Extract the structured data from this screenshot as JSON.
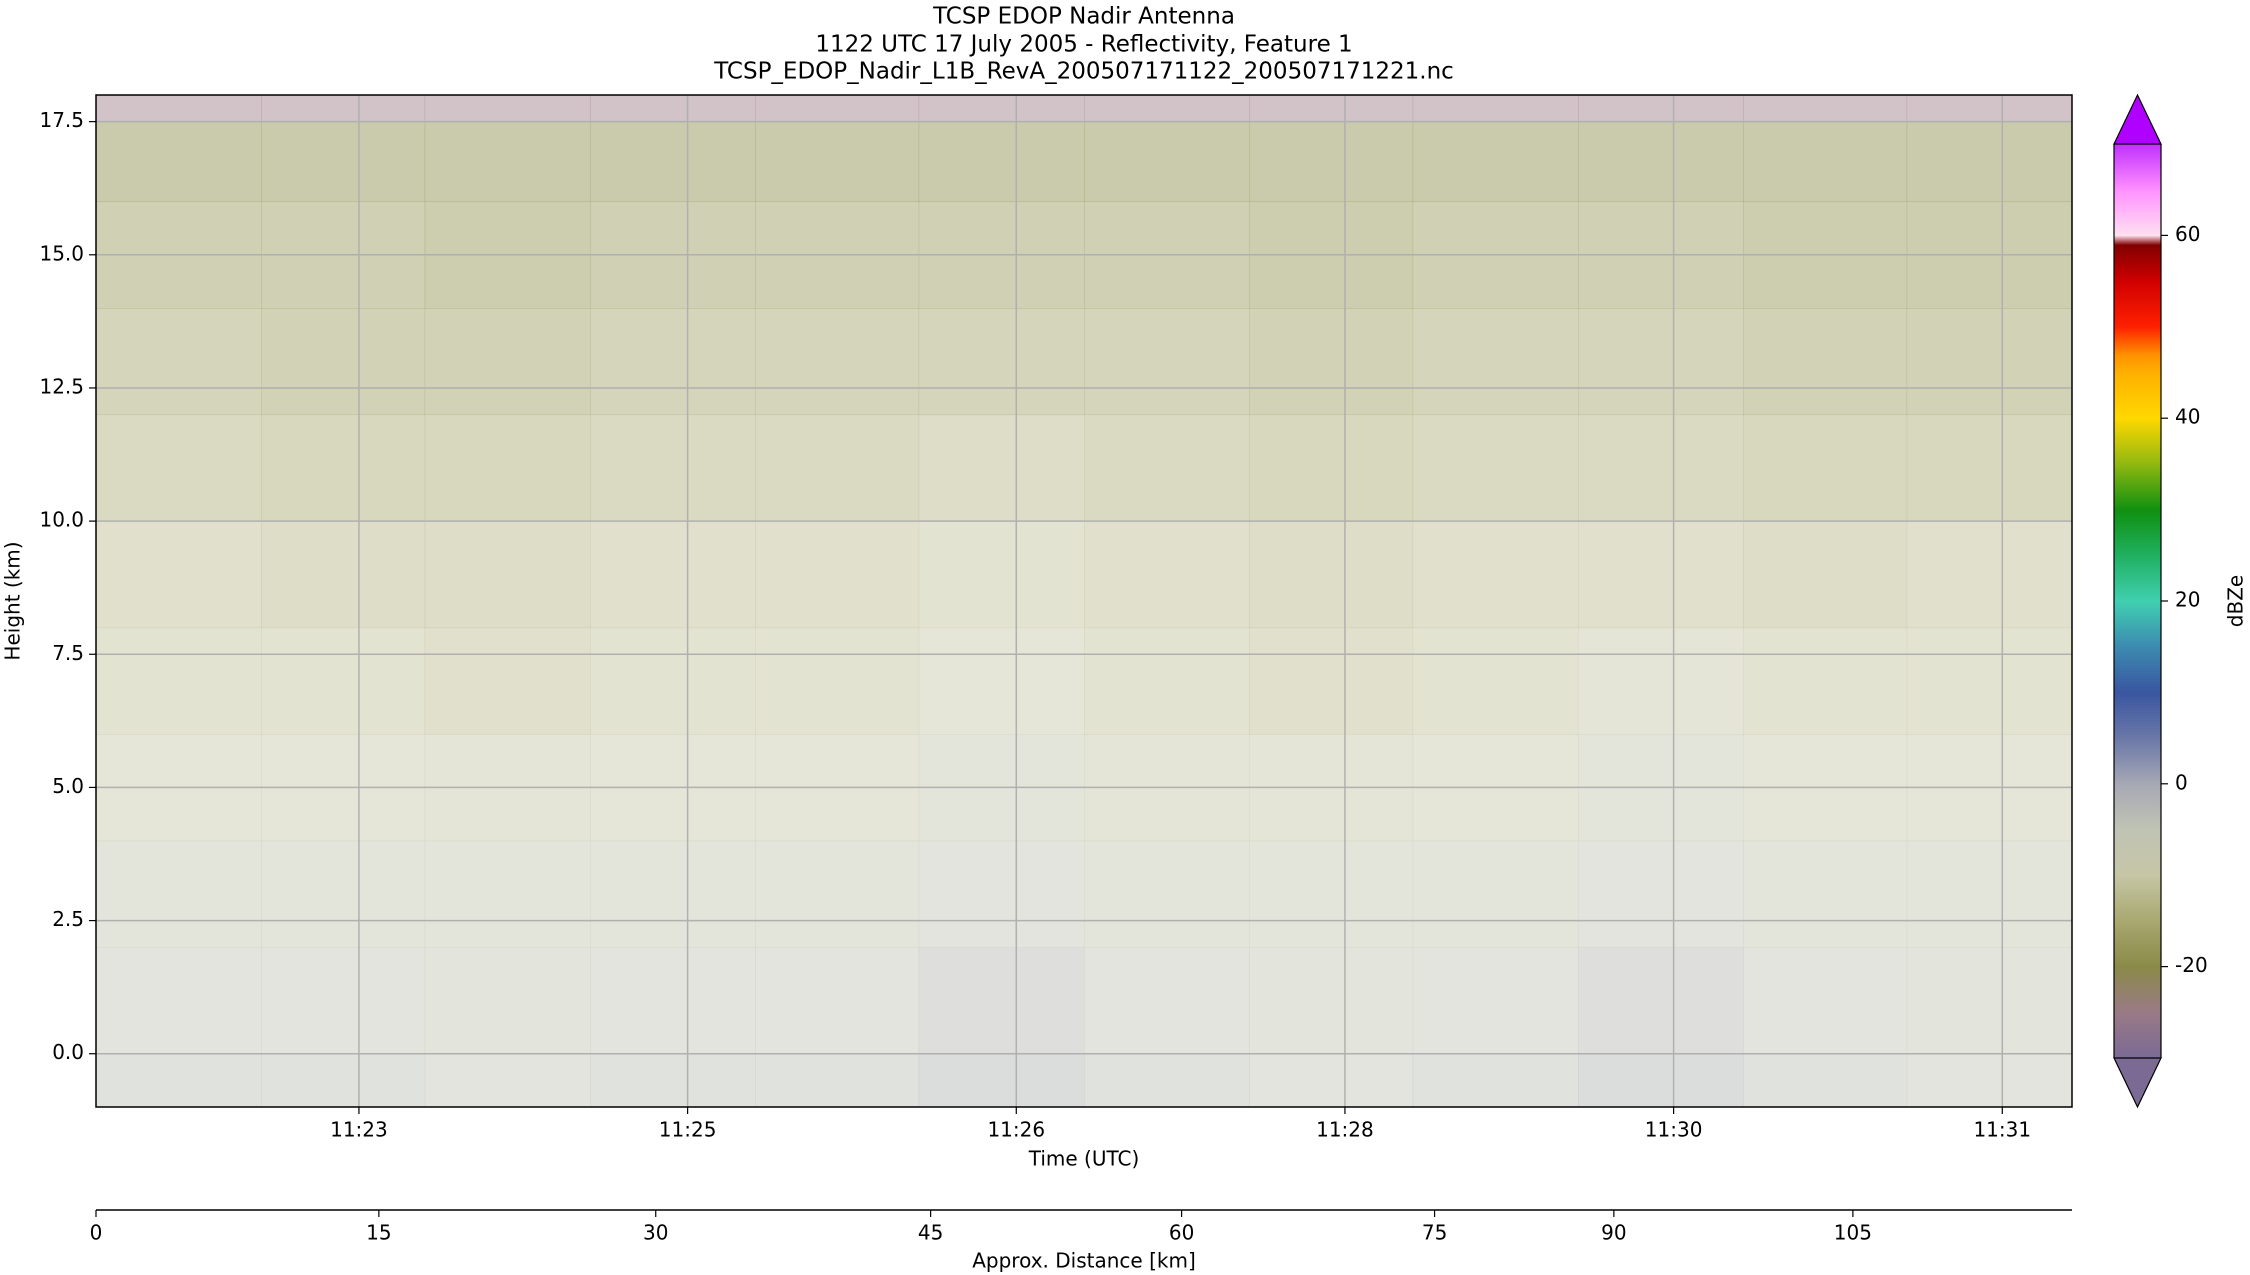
{
  "chart_data": {
    "type": "heatmap",
    "title": "TCSP EDOP Nadir Antenna",
    "subtitle": "1122 UTC 17 July 2005 - Reflectivity, Feature 1",
    "filename": "TCSP_EDOP_Nadir_L1B_RevA_200507171122_200507171221.nc",
    "xlabel": "Time (UTC)",
    "ylabel": "Height (km)",
    "colorbar_label": "dBZe",
    "xlim": [
      682.08,
      692.0
    ],
    "xticks": [
      {
        "value": 683.4,
        "label": "11:23"
      },
      {
        "value": 685.05,
        "label": "11:25"
      },
      {
        "value": 686.7,
        "label": "11:26"
      },
      {
        "value": 688.35,
        "label": "11:28"
      },
      {
        "value": 690.0,
        "label": "11:30"
      },
      {
        "value": 691.65,
        "label": "11:31"
      }
    ],
    "ylim": [
      -1,
      18
    ],
    "yticks": [
      {
        "value": 0,
        "label": "0.0"
      },
      {
        "value": 2.5,
        "label": "2.5"
      },
      {
        "value": 5,
        "label": "5.0"
      },
      {
        "value": 7.5,
        "label": "7.5"
      },
      {
        "value": 10,
        "label": "10.0"
      },
      {
        "value": 12.5,
        "label": "12.5"
      },
      {
        "value": 15,
        "label": "15.0"
      },
      {
        "value": 17.5,
        "label": "17.5"
      }
    ],
    "grid": true,
    "x_edges": [
      682.08,
      682.91,
      683.73,
      684.56,
      685.39,
      686.21,
      687.04,
      687.87,
      688.69,
      689.52,
      690.35,
      691.17,
      692.0
    ],
    "y_edges": [
      -1,
      0,
      2,
      4,
      6,
      8,
      10,
      12,
      14,
      16,
      17.5,
      18
    ],
    "z": [
      [
        -4,
        -4,
        -5,
        -4,
        -4,
        -2,
        -4,
        -5,
        -4,
        -2,
        -4,
        -5
      ],
      [
        -5,
        -5,
        -6,
        -5,
        -5,
        -3,
        -5,
        -6,
        -5,
        -3,
        -5,
        -6
      ],
      [
        -7,
        -7,
        -8,
        -7,
        -7,
        -5,
        -7,
        -8,
        -7,
        -5,
        -7,
        -7
      ],
      [
        -9,
        -9,
        -10,
        -9,
        -9,
        -7,
        -10,
        -10,
        -9,
        -8,
        -9,
        -9
      ],
      [
        -11,
        -11,
        -12,
        -11,
        -11,
        -9,
        -11,
        -12,
        -11,
        -10,
        -11,
        -11
      ],
      [
        -12,
        -13,
        -13,
        -12,
        -12,
        -11,
        -12,
        -13,
        -12,
        -12,
        -13,
        -12
      ],
      [
        -14,
        -15,
        -15,
        -14,
        -14,
        -13,
        -14,
        -15,
        -14,
        -14,
        -15,
        -15
      ],
      [
        -16,
        -17,
        -17,
        -16,
        -16,
        -16,
        -16,
        -17,
        -16,
        -16,
        -17,
        -17
      ],
      [
        -18,
        -18,
        -19,
        -18,
        -18,
        -18,
        -18,
        -19,
        -18,
        -18,
        -19,
        -19
      ],
      [
        -20,
        -20,
        -20,
        -20,
        -20,
        -20,
        -20,
        -20,
        -20,
        -20,
        -20,
        -20
      ],
      [
        -25,
        -25,
        -25,
        -25,
        -25,
        -25,
        -25,
        -25,
        -25,
        -25,
        -25,
        -25
      ]
    ],
    "clim": [
      -30,
      70
    ],
    "cticks": [
      -20,
      0,
      20,
      40,
      60
    ],
    "colormap": [
      [
        -30,
        "#7a6a94"
      ],
      [
        -25,
        "#9a7a86"
      ],
      [
        -20,
        "#8a8a48"
      ],
      [
        -15,
        "#a8a870"
      ],
      [
        -10,
        "#c6c6a6"
      ],
      [
        -5,
        "#c0c4b4"
      ],
      [
        0,
        "#a6a8b4"
      ],
      [
        5,
        "#6a78a8"
      ],
      [
        10,
        "#3a56a0"
      ],
      [
        15,
        "#3c8ab0"
      ],
      [
        20,
        "#40d0b0"
      ],
      [
        25,
        "#20b060"
      ],
      [
        30,
        "#109010"
      ],
      [
        35,
        "#90b810"
      ],
      [
        40,
        "#ffd800"
      ],
      [
        45,
        "#ffb000"
      ],
      [
        47,
        "#ff9000"
      ],
      [
        50,
        "#ff2000"
      ],
      [
        55,
        "#d00000"
      ],
      [
        59,
        "#800000"
      ],
      [
        60,
        "#ffe0f0"
      ],
      [
        65,
        "#ff90ff"
      ],
      [
        70,
        "#c030ff"
      ]
    ],
    "extend_colors": [
      "#7a6a94",
      "#b000ff"
    ],
    "distance_axis": {
      "label": "Approx. Distance [km]",
      "ticks": [
        0,
        15,
        30,
        45,
        60,
        75,
        90,
        105
      ],
      "tick_times": [
        682.08,
        683.5,
        684.89,
        686.27,
        687.53,
        688.8,
        689.7,
        690.9
      ]
    }
  }
}
